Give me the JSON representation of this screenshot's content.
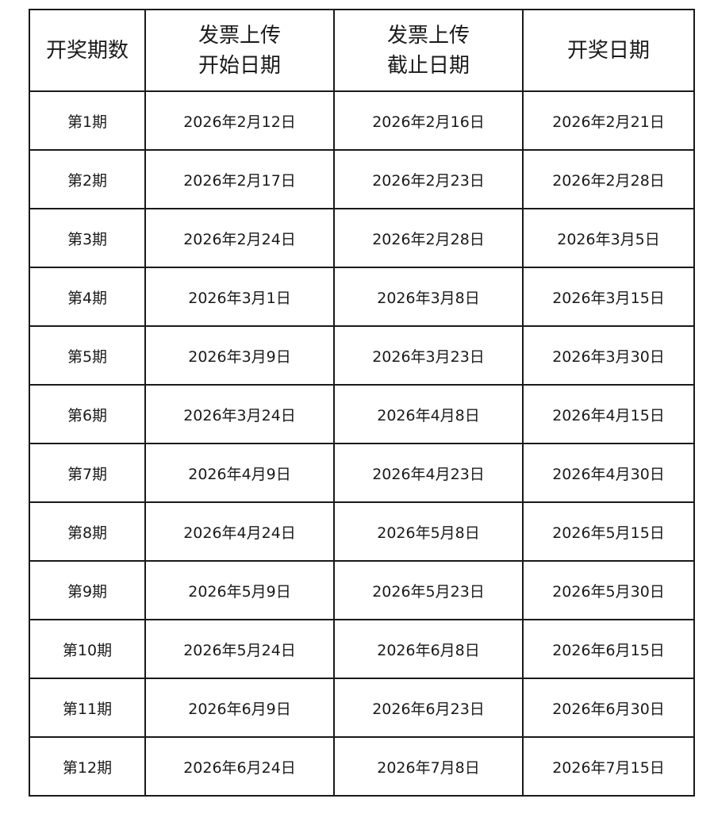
{
  "table": {
    "headers": [
      {
        "line1": "开奖期数",
        "line2": ""
      },
      {
        "line1": "发票上传",
        "line2": "开始日期"
      },
      {
        "line1": "发票上传",
        "line2": "截止日期"
      },
      {
        "line1": "开奖日期",
        "line2": ""
      }
    ],
    "rows": [
      [
        "第1期",
        "2026年2月12日",
        "2026年2月16日",
        "2026年2月21日"
      ],
      [
        "第2期",
        "2026年2月17日",
        "2026年2月23日",
        "2026年2月28日"
      ],
      [
        "第3期",
        "2026年2月24日",
        "2026年2月28日",
        "2026年3月5日"
      ],
      [
        "第4期",
        "2026年3月1日",
        "2026年3月8日",
        "2026年3月15日"
      ],
      [
        "第5期",
        "2026年3月9日",
        "2026年3月23日",
        "2026年3月30日"
      ],
      [
        "第6期",
        "2026年3月24日",
        "2026年4月8日",
        "2026年4月15日"
      ],
      [
        "第7期",
        "2026年4月9日",
        "2026年4月23日",
        "2026年4月30日"
      ],
      [
        "第8期",
        "2026年4月24日",
        "2026年5月8日",
        "2026年5月15日"
      ],
      [
        "第9期",
        "2026年5月9日",
        "2026年5月23日",
        "2026年5月30日"
      ],
      [
        "第10期",
        "2026年5月24日",
        "2026年6月8日",
        "2026年6月15日"
      ],
      [
        "第11期",
        "2026年6月9日",
        "2026年6月23日",
        "2026年6月30日"
      ],
      [
        "第12期",
        "2026年6月24日",
        "2026年7月8日",
        "2026年7月15日"
      ]
    ]
  }
}
